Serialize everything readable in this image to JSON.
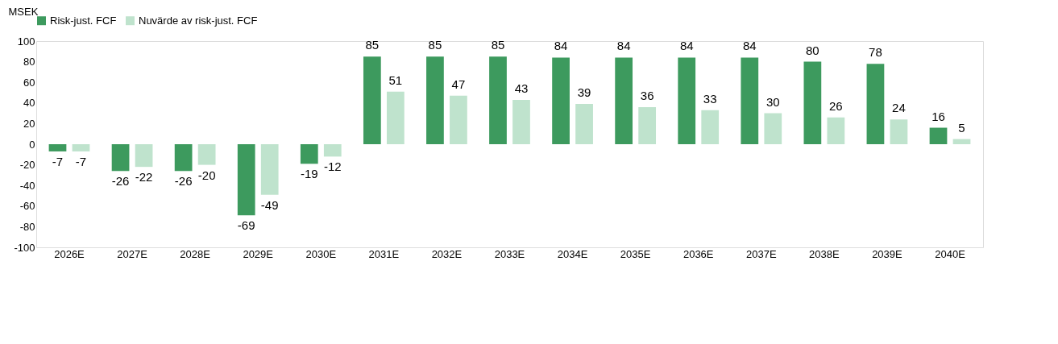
{
  "chart_data": {
    "type": "bar",
    "ylabel": "MSEK",
    "categories": [
      "2026E",
      "2027E",
      "2028E",
      "2029E",
      "2030E",
      "2031E",
      "2032E",
      "2033E",
      "2034E",
      "2035E",
      "2036E",
      "2037E",
      "2038E",
      "2039E",
      "2040E"
    ],
    "series": [
      {
        "name": "Risk-just. FCF",
        "color": "#3d9a5e",
        "values": [
          -7,
          -26,
          -26,
          -69,
          -19,
          85,
          85,
          85,
          84,
          84,
          84,
          84,
          80,
          78,
          16
        ]
      },
      {
        "name": "Nuvärde av risk-just. FCF",
        "color": "#bfe3cd",
        "values": [
          -7,
          -22,
          -20,
          -49,
          -12,
          51,
          47,
          43,
          39,
          36,
          33,
          30,
          26,
          24,
          5
        ]
      }
    ],
    "ylim": [
      -100,
      100
    ],
    "yticks": [
      -100,
      -80,
      -60,
      -40,
      -20,
      0,
      20,
      40,
      60,
      80,
      100
    ],
    "data_labels": true,
    "legend": "top",
    "grid": false
  }
}
